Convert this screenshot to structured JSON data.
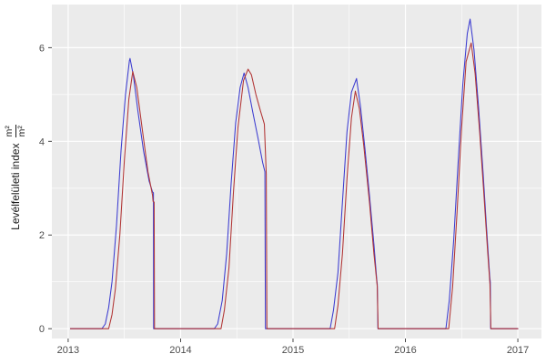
{
  "chart_data": {
    "type": "line",
    "title": "",
    "xlabel": "",
    "ylabel_text": "Levélfelületi index",
    "ylabel_unit_num": "m²",
    "ylabel_unit_den": "m²",
    "x_tick_labels": [
      "2013",
      "2014",
      "2015",
      "2016",
      "2017"
    ],
    "x_ticks": [
      2013,
      2014,
      2015,
      2016,
      2017
    ],
    "x_minor": [
      2013.5,
      2014.5,
      2015.5,
      2016.5
    ],
    "y_tick_labels": [
      "0",
      "2",
      "4",
      "6"
    ],
    "y_ticks": [
      0,
      2,
      4,
      6
    ],
    "y_minor": [
      1,
      3,
      5
    ],
    "xlim": [
      2012.855,
      2017.21
    ],
    "ylim": [
      -0.21,
      6.92
    ],
    "grid": true,
    "legend": "none",
    "panel_bg": "#EBEBEB",
    "grid_color": "#FFFFFF",
    "tick_color": "#333333",
    "label_color": "#4D4D4D",
    "series": [
      {
        "name": "series-blue",
        "color": "#3B3BD0",
        "points": [
          [
            2013.02,
            0
          ],
          [
            2013.3,
            0
          ],
          [
            2013.33,
            0.1
          ],
          [
            2013.36,
            0.45
          ],
          [
            2013.39,
            1.0
          ],
          [
            2013.43,
            2.2
          ],
          [
            2013.47,
            3.8
          ],
          [
            2013.51,
            5.0
          ],
          [
            2013.545,
            5.72
          ],
          [
            2013.55,
            5.77
          ],
          [
            2013.58,
            5.4
          ],
          [
            2013.62,
            4.65
          ],
          [
            2013.67,
            3.8
          ],
          [
            2013.72,
            3.15
          ],
          [
            2013.75,
            2.92
          ],
          [
            2013.758,
            2.9
          ],
          [
            2013.76,
            0
          ],
          [
            2014.3,
            0
          ],
          [
            2014.33,
            0.1
          ],
          [
            2014.37,
            0.6
          ],
          [
            2014.41,
            1.6
          ],
          [
            2014.45,
            3.1
          ],
          [
            2014.49,
            4.4
          ],
          [
            2014.53,
            5.15
          ],
          [
            2014.565,
            5.46
          ],
          [
            2014.6,
            5.15
          ],
          [
            2014.64,
            4.65
          ],
          [
            2014.69,
            4.05
          ],
          [
            2014.73,
            3.55
          ],
          [
            2014.75,
            3.35
          ],
          [
            2014.755,
            0
          ],
          [
            2015.33,
            0
          ],
          [
            2015.36,
            0.4
          ],
          [
            2015.4,
            1.2
          ],
          [
            2015.44,
            2.7
          ],
          [
            2015.48,
            4.2
          ],
          [
            2015.52,
            5.05
          ],
          [
            2015.565,
            5.34
          ],
          [
            2015.6,
            4.75
          ],
          [
            2015.64,
            3.85
          ],
          [
            2015.68,
            2.85
          ],
          [
            2015.72,
            1.8
          ],
          [
            2015.745,
            1.05
          ],
          [
            2015.75,
            0.95
          ],
          [
            2015.755,
            0
          ],
          [
            2016.36,
            0
          ],
          [
            2016.39,
            0.6
          ],
          [
            2016.43,
            1.9
          ],
          [
            2016.47,
            3.6
          ],
          [
            2016.51,
            5.2
          ],
          [
            2016.55,
            6.3
          ],
          [
            2016.575,
            6.61
          ],
          [
            2016.61,
            5.95
          ],
          [
            2016.65,
            4.75
          ],
          [
            2016.69,
            3.35
          ],
          [
            2016.72,
            2.2
          ],
          [
            2016.75,
            1.1
          ],
          [
            2016.755,
            1.0
          ],
          [
            2016.758,
            0
          ],
          [
            2017.0,
            0
          ]
        ]
      },
      {
        "name": "series-red",
        "color": "#B13434",
        "points": [
          [
            2013.02,
            0
          ],
          [
            2013.36,
            0
          ],
          [
            2013.39,
            0.3
          ],
          [
            2013.42,
            0.85
          ],
          [
            2013.46,
            2.0
          ],
          [
            2013.5,
            3.6
          ],
          [
            2013.54,
            4.9
          ],
          [
            2013.575,
            5.49
          ],
          [
            2013.61,
            5.15
          ],
          [
            2013.66,
            4.25
          ],
          [
            2013.71,
            3.35
          ],
          [
            2013.75,
            2.85
          ],
          [
            2013.755,
            2.72
          ],
          [
            2013.765,
            2.7
          ],
          [
            2013.768,
            0
          ],
          [
            2014.36,
            0
          ],
          [
            2014.39,
            0.4
          ],
          [
            2014.43,
            1.3
          ],
          [
            2014.47,
            2.9
          ],
          [
            2014.51,
            4.3
          ],
          [
            2014.56,
            5.3
          ],
          [
            2014.6,
            5.54
          ],
          [
            2014.63,
            5.42
          ],
          [
            2014.67,
            5.0
          ],
          [
            2014.71,
            4.65
          ],
          [
            2014.745,
            4.37
          ],
          [
            2014.762,
            3.3
          ],
          [
            2014.768,
            0
          ],
          [
            2015.37,
            0
          ],
          [
            2015.4,
            0.5
          ],
          [
            2015.44,
            1.6
          ],
          [
            2015.48,
            3.2
          ],
          [
            2015.52,
            4.5
          ],
          [
            2015.555,
            5.07
          ],
          [
            2015.59,
            4.7
          ],
          [
            2015.63,
            3.9
          ],
          [
            2015.68,
            2.7
          ],
          [
            2015.72,
            1.6
          ],
          [
            2015.75,
            0.9
          ],
          [
            2015.757,
            0
          ],
          [
            2016.385,
            0
          ],
          [
            2016.42,
            0.9
          ],
          [
            2016.46,
            2.5
          ],
          [
            2016.5,
            4.3
          ],
          [
            2016.54,
            5.7
          ],
          [
            2016.585,
            6.1
          ],
          [
            2016.62,
            5.45
          ],
          [
            2016.66,
            4.2
          ],
          [
            2016.7,
            2.8
          ],
          [
            2016.73,
            1.7
          ],
          [
            2016.752,
            0.95
          ],
          [
            2016.76,
            0
          ],
          [
            2017.0,
            0
          ]
        ]
      }
    ]
  }
}
